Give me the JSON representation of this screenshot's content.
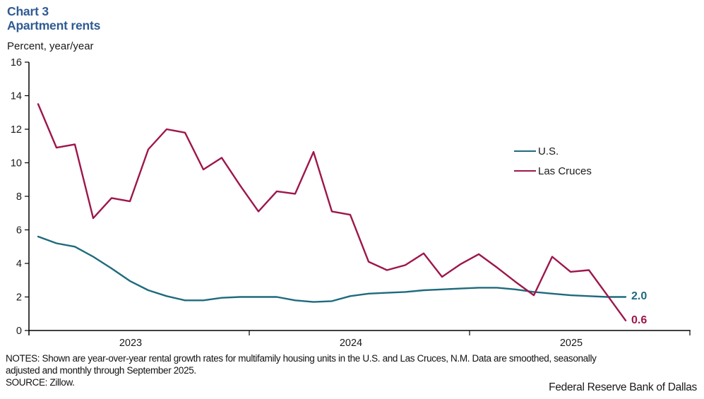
{
  "header": {
    "title_line1": "Chart 3",
    "title_line2": "Apartment rents",
    "subtitle": "Percent, year/year"
  },
  "colors": {
    "title": "#2F5A93",
    "axis": "#000000",
    "tick_text": "#1A1A1A",
    "us_line": "#1E6A7D",
    "las_cruces_line": "#9D164B"
  },
  "chart_data": {
    "type": "line",
    "title": "Chart 3: Apartment rents",
    "ylabel": "Percent, year/year",
    "ylim": [
      0,
      16
    ],
    "yticks": [
      0,
      2,
      4,
      6,
      8,
      10,
      12,
      14,
      16
    ],
    "xtick_labels": [
      "2023",
      "2024",
      "2025"
    ],
    "x_frequency": "monthly",
    "x_start": "Jan 2023",
    "x_end": "Sep 2025",
    "grid": false,
    "legend_position": "right-middle",
    "series": [
      {
        "name": "U.S.",
        "color": "#1E6A7D",
        "end_label": "2.0",
        "values": [
          5.6,
          5.2,
          5.0,
          4.4,
          3.7,
          2.95,
          2.4,
          2.05,
          1.8,
          1.8,
          1.95,
          2.0,
          2.0,
          2.0,
          1.8,
          1.7,
          1.75,
          2.05,
          2.2,
          2.25,
          2.3,
          2.4,
          2.45,
          2.5,
          2.55,
          2.55,
          2.45,
          2.3,
          2.2,
          2.1,
          2.05,
          2.0,
          2.0
        ]
      },
      {
        "name": "Las Cruces",
        "color": "#9D164B",
        "end_label": "0.6",
        "values": [
          13.5,
          10.9,
          11.1,
          6.7,
          7.9,
          7.7,
          10.8,
          12.0,
          11.8,
          9.6,
          10.3,
          8.65,
          7.1,
          8.3,
          8.15,
          10.65,
          7.1,
          6.9,
          4.1,
          3.6,
          3.9,
          4.6,
          3.2,
          3.95,
          4.55,
          3.75,
          2.9,
          2.1,
          4.4,
          3.5,
          3.6,
          2.1,
          0.6
        ]
      }
    ]
  },
  "notes": {
    "line1": "NOTES: Shown are year-over-year rental growth rates for multifamily housing units in the U.S. and Las Cruces, N.M. Data are smoothed, seasonally",
    "line2": "adjusted and monthly through September 2025.",
    "source": "SOURCE: Zillow.",
    "attribution": "Federal Reserve Bank of Dallas"
  }
}
